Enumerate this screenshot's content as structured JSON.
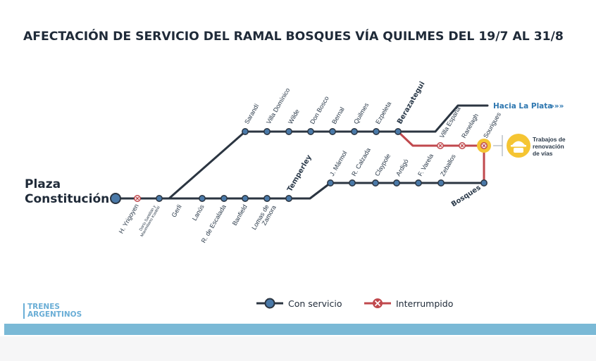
{
  "title": "AFECTACIÓN DE SERVICIO DEL RAMAL BOSQUES VÍA QUILMES DEL 19/7 AL 31/8",
  "colors": {
    "active": "#2b3541",
    "station": "#4a79a8",
    "interrupted": "#c0484d",
    "works": "#f5c533",
    "brand": "#6aaed6",
    "band": "#7ab9d6"
  },
  "terminal": {
    "line1": "Plaza",
    "line2": "Constitución"
  },
  "direction_label": "Hacia La Plata",
  "direction_arrows": "»»»",
  "works_label": [
    "Trabajos de",
    "renovación",
    "de vías"
  ],
  "works_icon": "construction-worker-icon",
  "stations_trunk": [
    {
      "name": "H. Yrigoyen",
      "status": "interrumpido"
    },
    {
      "name": "Darío Santillán y Maximiliano Kosteki",
      "status": "interrumpido"
    },
    {
      "name": "Gerli",
      "status": "con servicio"
    }
  ],
  "stations_quilmes": [
    "Sarandí",
    "Villa Domínico",
    "Wilde",
    "Don Bosco",
    "Bernal",
    "Quilmes",
    "Ezpeleta",
    "Berazategui"
  ],
  "stations_temperley": [
    "Lanús",
    "R. de Escalada",
    "Banfield",
    "Lomas de Zamora",
    "Temperley"
  ],
  "stations_bosques": [
    "J. Mármol",
    "R. Calzada",
    "Claypole",
    "Ardigó",
    "F. Varela",
    "Zeballos",
    "Bosques"
  ],
  "stations_interrupted_branch": [
    "Villa España",
    "Ranelagh",
    "Sourigues"
  ],
  "legend": [
    {
      "label": "Con servicio",
      "kind": "active"
    },
    {
      "label": "Interrumpido",
      "kind": "interrupted"
    }
  ],
  "logo": {
    "line1": "TRENES",
    "line2": "ARGENTINOS"
  }
}
